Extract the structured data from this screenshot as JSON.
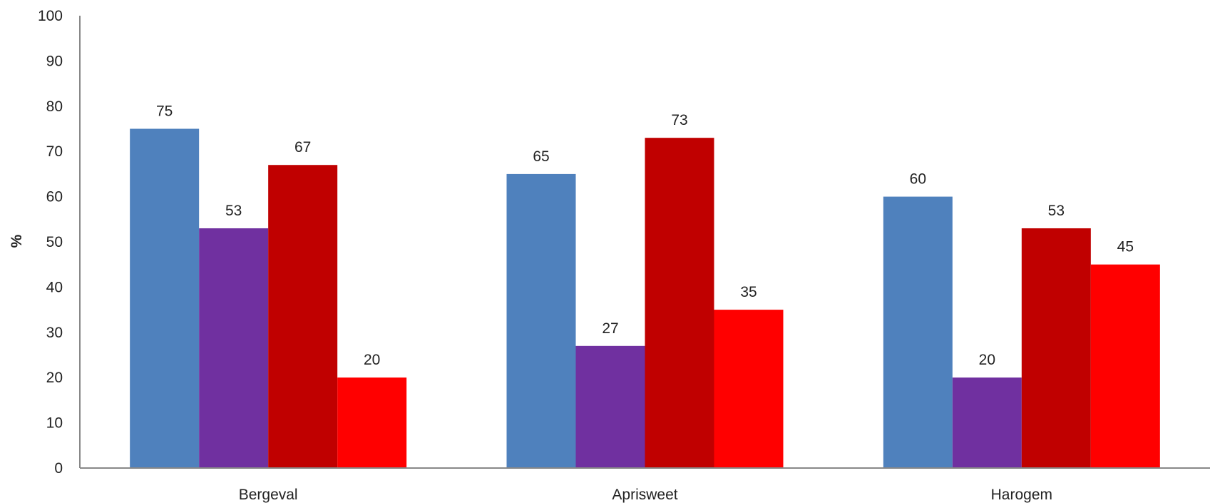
{
  "chart_data": {
    "type": "bar",
    "title": "",
    "xlabel": "",
    "ylabel": "%",
    "ylim": [
      0,
      100
    ],
    "yticks": [
      0,
      10,
      20,
      30,
      40,
      50,
      60,
      70,
      80,
      90,
      100
    ],
    "grid": false,
    "legend": "none",
    "categories": [
      "Bergeval",
      "Aprisweet",
      "Harogem"
    ],
    "series": [
      {
        "color": "#4f81bd",
        "values": [
          75,
          65,
          60
        ]
      },
      {
        "color": "#7030a0",
        "values": [
          53,
          27,
          20
        ]
      },
      {
        "color": "#c00000",
        "values": [
          67,
          73,
          53
        ]
      },
      {
        "color": "#ff0000",
        "values": [
          20,
          35,
          45
        ]
      }
    ]
  }
}
